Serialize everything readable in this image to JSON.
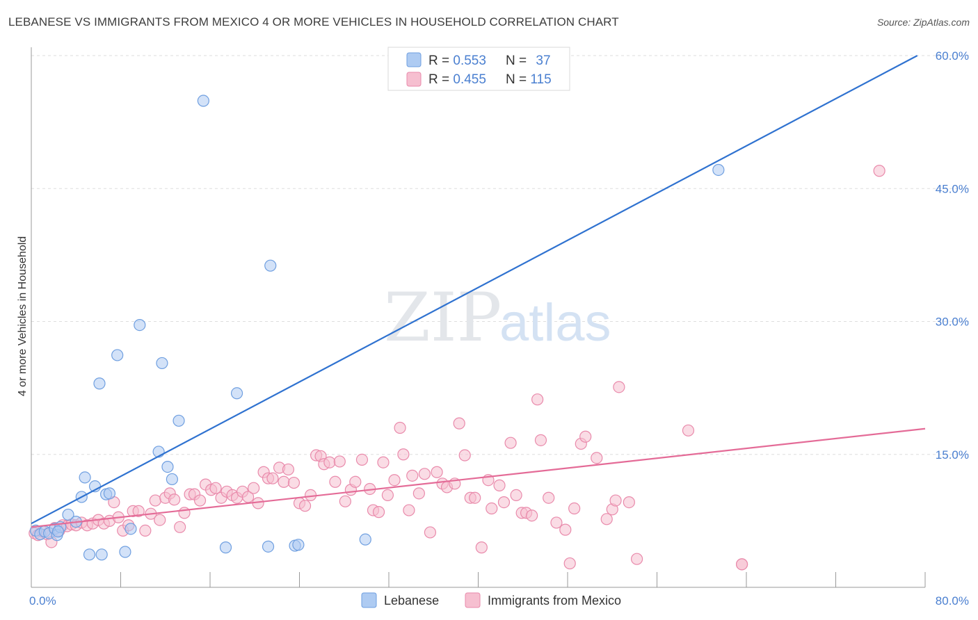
{
  "header": {
    "title": "LEBANESE VS IMMIGRANTS FROM MEXICO 4 OR MORE VEHICLES IN HOUSEHOLD CORRELATION CHART",
    "source": "Source: ZipAtlas.com"
  },
  "watermark": {
    "zip": "ZIP",
    "atlas": "atlas"
  },
  "colors": {
    "blue_fill": "#aecbf2",
    "blue_stroke": "#6f9fe0",
    "blue_line": "#2f72d0",
    "pink_fill": "#f6bfd0",
    "pink_stroke": "#e98aab",
    "pink_line": "#e46b97",
    "accent_text": "#4a7fd0"
  },
  "chart_data": {
    "type": "scatter",
    "title": "LEBANESE VS IMMIGRANTS FROM MEXICO 4 OR MORE VEHICLES IN HOUSEHOLD CORRELATION CHART",
    "xlabel": "",
    "ylabel": "4 or more Vehicles in Household",
    "xlim": [
      0,
      80
    ],
    "ylim": [
      0,
      60
    ],
    "x_tick_labels": [
      "0.0%",
      "80.0%"
    ],
    "y_ticks": [
      15,
      30,
      45,
      60
    ],
    "y_tick_labels": [
      "15.0%",
      "30.0%",
      "45.0%",
      "60.0%"
    ],
    "grid": true,
    "legend_top": [
      {
        "r_label": "R = ",
        "r_value": "0.553",
        "n_label": "N = ",
        "n_value": "37"
      },
      {
        "r_label": "R = ",
        "r_value": "0.455",
        "n_label": "N = ",
        "n_value": "115"
      }
    ],
    "series": [
      {
        "name": "Lebanese",
        "trend": {
          "x": [
            0,
            79.3
          ],
          "y": [
            7.2,
            60.0
          ]
        },
        "points": [
          [
            0.4,
            6.4
          ],
          [
            0.8,
            6.0
          ],
          [
            1.2,
            6.3
          ],
          [
            1.6,
            6.1
          ],
          [
            2.1,
            6.6
          ],
          [
            2.3,
            5.9
          ],
          [
            2.6,
            6.8
          ],
          [
            3.3,
            8.2
          ],
          [
            4.0,
            7.4
          ],
          [
            4.5,
            10.2
          ],
          [
            4.8,
            12.4
          ],
          [
            5.2,
            3.7
          ],
          [
            5.7,
            11.4
          ],
          [
            6.1,
            23.0
          ],
          [
            6.3,
            3.7
          ],
          [
            6.7,
            10.5
          ],
          [
            7.0,
            10.6
          ],
          [
            7.7,
            26.2
          ],
          [
            8.4,
            4.0
          ],
          [
            8.9,
            6.6
          ],
          [
            9.7,
            29.6
          ],
          [
            11.4,
            15.3
          ],
          [
            11.7,
            25.3
          ],
          [
            12.2,
            13.6
          ],
          [
            12.6,
            12.2
          ],
          [
            13.2,
            18.8
          ],
          [
            15.4,
            54.9
          ],
          [
            17.4,
            4.5
          ],
          [
            18.4,
            21.9
          ],
          [
            21.4,
            36.3
          ],
          [
            21.2,
            4.6
          ],
          [
            23.6,
            4.7
          ],
          [
            23.9,
            4.8
          ],
          [
            29.9,
            5.4
          ],
          [
            33.3,
            59.8
          ],
          [
            61.5,
            47.1
          ],
          [
            2.4,
            6.3
          ]
        ]
      },
      {
        "name": "Immigrants from Mexico",
        "trend": {
          "x": [
            0,
            80.0
          ],
          "y": [
            6.8,
            17.9
          ]
        },
        "points": [
          [
            0.3,
            6.1
          ],
          [
            0.6,
            5.9
          ],
          [
            1.0,
            6.3
          ],
          [
            1.4,
            6.0
          ],
          [
            1.8,
            5.1
          ],
          [
            2.1,
            6.7
          ],
          [
            2.5,
            6.4
          ],
          [
            2.8,
            7.0
          ],
          [
            3.2,
            6.9
          ],
          [
            3.6,
            7.1
          ],
          [
            4.0,
            7.0
          ],
          [
            4.5,
            7.3
          ],
          [
            5.0,
            7.0
          ],
          [
            5.5,
            7.2
          ],
          [
            6.0,
            7.6
          ],
          [
            6.5,
            7.2
          ],
          [
            7.0,
            7.5
          ],
          [
            7.4,
            9.6
          ],
          [
            7.8,
            7.9
          ],
          [
            8.2,
            6.4
          ],
          [
            8.7,
            7.0
          ],
          [
            9.1,
            8.6
          ],
          [
            9.6,
            8.6
          ],
          [
            10.2,
            6.4
          ],
          [
            10.7,
            8.3
          ],
          [
            11.1,
            9.8
          ],
          [
            11.5,
            7.6
          ],
          [
            12.0,
            10.1
          ],
          [
            12.4,
            10.6
          ],
          [
            12.8,
            9.9
          ],
          [
            13.3,
            6.8
          ],
          [
            13.7,
            8.4
          ],
          [
            14.2,
            10.5
          ],
          [
            14.6,
            10.5
          ],
          [
            15.1,
            9.8
          ],
          [
            15.6,
            11.6
          ],
          [
            16.1,
            11.0
          ],
          [
            16.5,
            11.2
          ],
          [
            17.0,
            10.1
          ],
          [
            17.5,
            10.8
          ],
          [
            18.0,
            10.4
          ],
          [
            18.4,
            10.1
          ],
          [
            18.9,
            10.8
          ],
          [
            19.4,
            10.2
          ],
          [
            19.9,
            11.2
          ],
          [
            20.3,
            9.5
          ],
          [
            20.8,
            13.0
          ],
          [
            21.2,
            12.3
          ],
          [
            21.6,
            12.3
          ],
          [
            22.2,
            13.5
          ],
          [
            22.6,
            11.9
          ],
          [
            23.0,
            13.3
          ],
          [
            23.5,
            11.8
          ],
          [
            24.0,
            9.5
          ],
          [
            24.5,
            9.2
          ],
          [
            25.0,
            10.4
          ],
          [
            25.5,
            14.9
          ],
          [
            25.9,
            14.8
          ],
          [
            26.2,
            13.9
          ],
          [
            26.7,
            14.1
          ],
          [
            27.2,
            11.9
          ],
          [
            27.6,
            14.2
          ],
          [
            28.1,
            9.7
          ],
          [
            28.6,
            11.0
          ],
          [
            29.0,
            11.9
          ],
          [
            29.6,
            14.4
          ],
          [
            30.3,
            11.1
          ],
          [
            30.6,
            8.7
          ],
          [
            31.1,
            8.5
          ],
          [
            31.5,
            14.1
          ],
          [
            31.9,
            10.4
          ],
          [
            32.5,
            12.1
          ],
          [
            33.0,
            18.0
          ],
          [
            33.3,
            15.0
          ],
          [
            33.8,
            8.7
          ],
          [
            34.1,
            12.6
          ],
          [
            34.7,
            10.6
          ],
          [
            35.2,
            12.8
          ],
          [
            35.7,
            6.2
          ],
          [
            36.3,
            13.0
          ],
          [
            36.8,
            11.7
          ],
          [
            37.2,
            11.3
          ],
          [
            37.9,
            11.7
          ],
          [
            38.3,
            18.5
          ],
          [
            38.8,
            14.9
          ],
          [
            39.3,
            10.1
          ],
          [
            39.7,
            10.1
          ],
          [
            40.3,
            4.5
          ],
          [
            40.9,
            12.1
          ],
          [
            41.2,
            8.9
          ],
          [
            41.9,
            11.5
          ],
          [
            42.3,
            9.6
          ],
          [
            42.9,
            16.3
          ],
          [
            43.4,
            10.4
          ],
          [
            43.9,
            8.4
          ],
          [
            44.3,
            8.4
          ],
          [
            44.8,
            8.1
          ],
          [
            45.3,
            21.2
          ],
          [
            45.6,
            16.6
          ],
          [
            46.3,
            10.1
          ],
          [
            47.0,
            7.3
          ],
          [
            47.8,
            6.5
          ],
          [
            48.2,
            2.7
          ],
          [
            48.6,
            8.9
          ],
          [
            49.2,
            16.2
          ],
          [
            49.6,
            17.0
          ],
          [
            50.6,
            14.6
          ],
          [
            51.5,
            7.7
          ],
          [
            52.0,
            8.8
          ],
          [
            52.3,
            9.8
          ],
          [
            52.6,
            22.6
          ],
          [
            53.5,
            9.6
          ],
          [
            54.2,
            3.2
          ],
          [
            58.8,
            17.7
          ],
          [
            63.6,
            2.6
          ],
          [
            63.6,
            2.6
          ],
          [
            75.9,
            47.0
          ]
        ]
      }
    ]
  },
  "legend_bottom": {
    "items": [
      "Lebanese",
      "Immigrants from Mexico"
    ]
  }
}
